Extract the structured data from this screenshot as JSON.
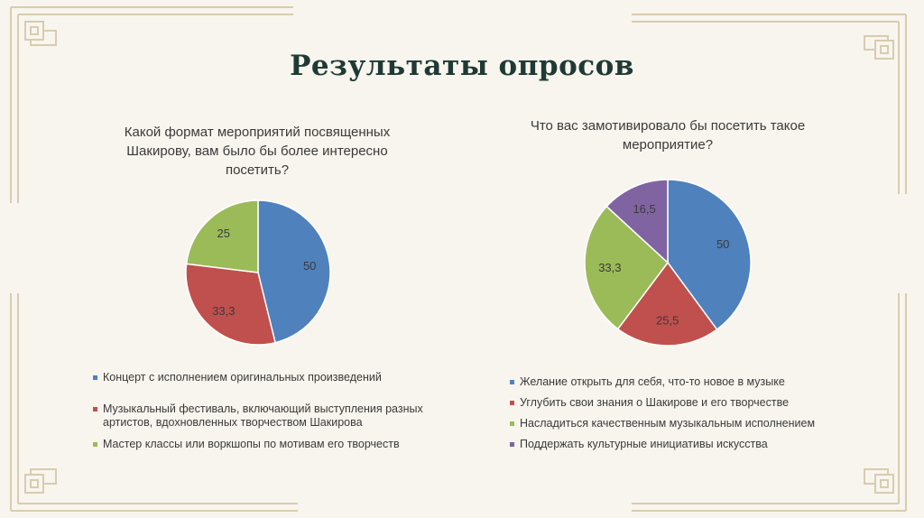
{
  "slide": {
    "title": "Результаты опросов"
  },
  "colors": {
    "blue": "#4f81bd",
    "red": "#c0504d",
    "green": "#9bbb59",
    "purple": "#8064a2",
    "frame": "#d8ccb0",
    "title": "#1f3a35"
  },
  "chart_data": [
    {
      "type": "pie",
      "title": "Какой формат мероприятий посвященных Шакирову, вам было бы более интересно посетить?",
      "categories": [
        "Концерт с исполнением оригинальных произведений",
        "Музыкальный фестиваль, включающий выступления разных артистов, вдохновленных творчеством Шакирова",
        "Мастер классы или воркшопы по мотивам его творчеств"
      ],
      "values": [
        50,
        33.3,
        25
      ],
      "labels": [
        "50",
        "33,3",
        "25"
      ],
      "colors": [
        "#4f81bd",
        "#c0504d",
        "#9bbb59"
      ],
      "legend": "bottom"
    },
    {
      "type": "pie",
      "title": "Что вас замотивировало бы посетить такое мероприятие?",
      "categories": [
        "Желание открыть для себя, что-то новое в музыке",
        "Углубить свои знания о Шакирове и его творчестве",
        "Насладиться качественным музыкальным исполнением",
        "Поддержать культурные инициативы искусства"
      ],
      "values": [
        50,
        25.5,
        33.3,
        16.5
      ],
      "labels": [
        "50",
        "25,5",
        "33,3",
        "16,5"
      ],
      "colors": [
        "#4f81bd",
        "#c0504d",
        "#9bbb59",
        "#8064a2"
      ],
      "legend": "bottom"
    }
  ]
}
